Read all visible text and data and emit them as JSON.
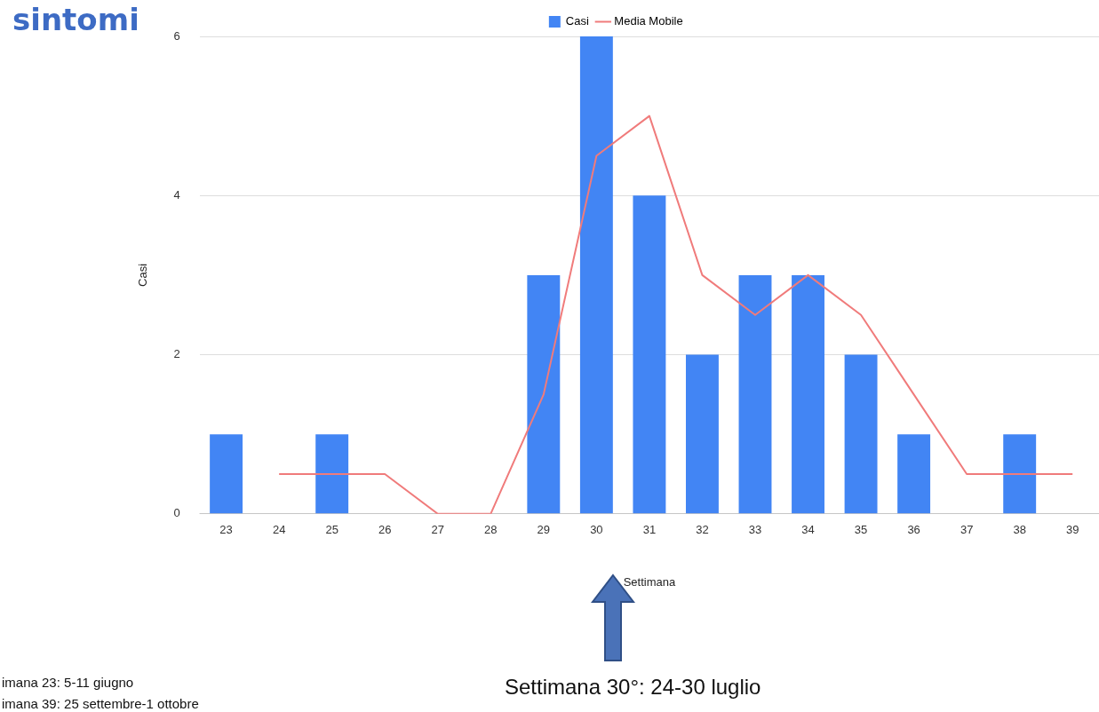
{
  "chart_data": {
    "type": "bar",
    "title": "sintomi",
    "xlabel": "Settimana",
    "ylabel": "Casi",
    "categories": [
      "23",
      "24",
      "25",
      "26",
      "27",
      "28",
      "29",
      "30",
      "31",
      "32",
      "33",
      "34",
      "35",
      "36",
      "37",
      "38",
      "39"
    ],
    "series": [
      {
        "name": "Casi",
        "color": "#4285f4",
        "values": [
          1,
          0,
          1,
          0,
          0,
          0,
          3,
          6,
          4,
          2,
          3,
          3,
          2,
          1,
          0,
          1,
          0
        ]
      },
      {
        "name": "Media Mobile",
        "type": "line",
        "color": "#f07b7b",
        "values": [
          null,
          0.5,
          0.5,
          0.5,
          0,
          0,
          1.5,
          4.5,
          5,
          3,
          2.5,
          3,
          2.5,
          1.5,
          0.5,
          0.5,
          0.5
        ]
      }
    ],
    "ylim": [
      0,
      6
    ],
    "yticks": [
      0,
      2,
      4,
      6
    ],
    "grid": "y",
    "legend": "top",
    "marker": "none",
    "line_style": "solid",
    "annotations": [
      "imana 23: 5-11 giugno",
      "imana 39: 25 settembre-1 ottobre",
      "Settimana 30°: 24-30 luglio"
    ]
  }
}
